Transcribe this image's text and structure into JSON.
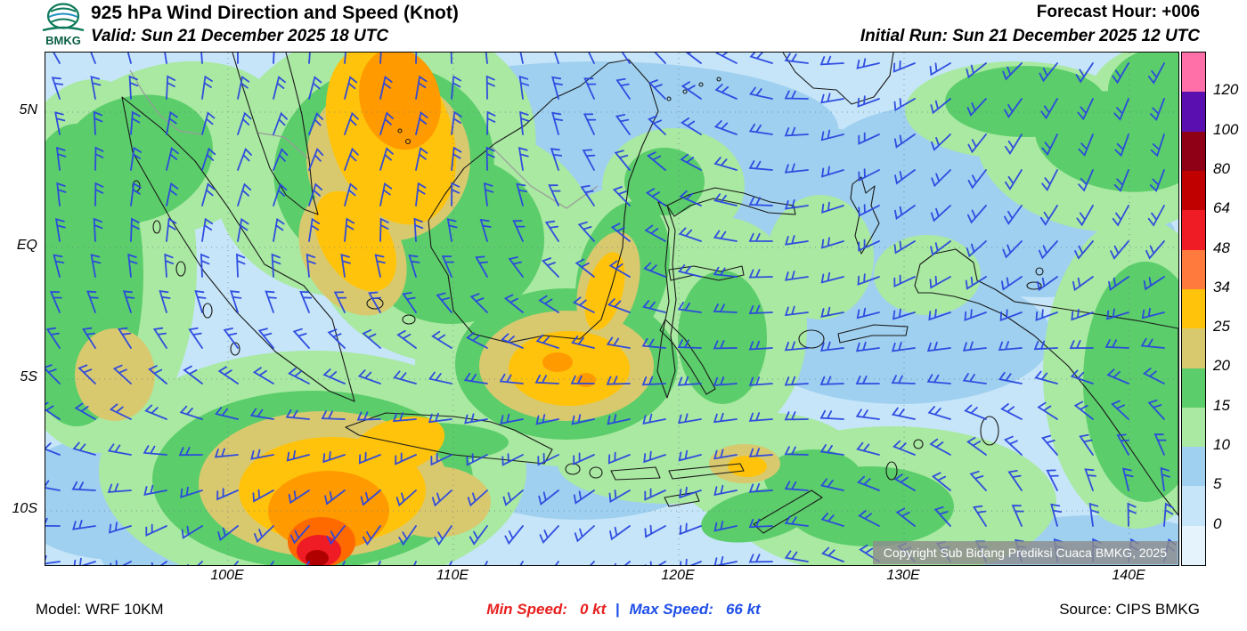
{
  "header": {
    "logo_text": "BMKG",
    "title": "925 hPa Wind Direction and Speed (Knot)",
    "valid": "Valid: Sun 21 December 2025 18 UTC",
    "forecast_hour": "Forecast Hour: +006",
    "initial_run": "Initial Run: Sun 21 December 2025 12 UTC"
  },
  "map": {
    "lat_labels": [
      "5N",
      "EQ",
      "5S",
      "10S"
    ],
    "lon_labels": [
      "100E",
      "110E",
      "120E",
      "130E",
      "140E"
    ],
    "copyright": "Copyright Sub Bidang Prediksi Cuaca BMKG, 2025",
    "barb_color": "#2946e0"
  },
  "colorbar": {
    "ticks": [
      "120",
      "100",
      "80",
      "64",
      "48",
      "34",
      "25",
      "20",
      "15",
      "10",
      "5",
      "0"
    ],
    "segments_top_to_bottom": [
      "#ff70a8",
      "#5a10b0",
      "#8f0016",
      "#c00000",
      "#ef1c25",
      "#ff7a3c",
      "#ffc30b",
      "#d8c96f",
      "#5bcd6b",
      "#a9e9a1",
      "#9fd0f0",
      "#c6e5f8",
      "#e4f3fc"
    ]
  },
  "footer": {
    "model": "Model: WRF 10KM",
    "min_label": "Min Speed:",
    "min_value": "0 kt",
    "separator": "|",
    "max_label": "Max Speed:",
    "max_value": "66 kt",
    "source": "Source: CIPS BMKG"
  },
  "chart_data": {
    "type": "heatmap",
    "title": "925 hPa Wind Direction and Speed (Knot)",
    "legend_values_kt": [
      0,
      5,
      10,
      15,
      20,
      25,
      34,
      48,
      64,
      80,
      100,
      120
    ],
    "x_ticks": [
      "100E",
      "110E",
      "120E",
      "130E",
      "140E"
    ],
    "y_ticks": [
      "5N",
      "EQ",
      "5S",
      "10S"
    ],
    "min_speed_kt": 0,
    "max_speed_kt": 66
  }
}
